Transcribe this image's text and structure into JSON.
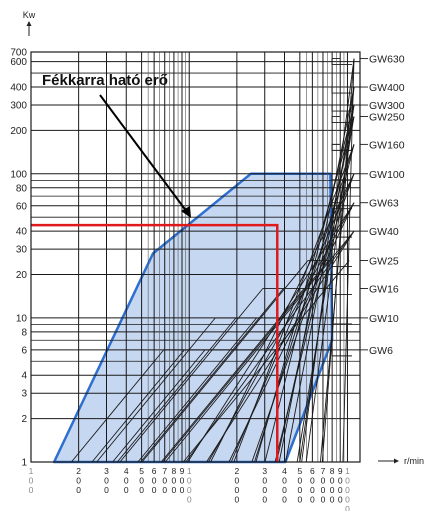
{
  "chart_data": {
    "type": "line",
    "title": "Fékkarra ható erő",
    "ylabel": "Kw",
    "xunit": "r/min",
    "y_scale": "log",
    "x_scale": "log",
    "ylim": [
      1,
      700
    ],
    "xlim": [
      100,
      12000
    ],
    "y_ticks": [
      1,
      2,
      3,
      4,
      6,
      8,
      10,
      20,
      30,
      40,
      60,
      80,
      100,
      200,
      300,
      400,
      600,
      700
    ],
    "y_tick_labels": [
      "1",
      "2",
      "3",
      "4",
      "6",
      "8",
      "10",
      "20",
      "30",
      "40",
      "60",
      "80",
      "100",
      "200",
      "300",
      "400",
      "600",
      "700"
    ],
    "x_tick_labels": [
      {
        "value": 100,
        "digits": [
          "1",
          "0",
          "0"
        ],
        "grey": true
      },
      {
        "value": 200,
        "digits": [
          "2",
          "0",
          "0"
        ]
      },
      {
        "value": 300,
        "digits": [
          "3",
          "0",
          "0"
        ]
      },
      {
        "value": 400,
        "digits": [
          "4",
          "0",
          "0"
        ]
      },
      {
        "value": 500,
        "digits": [
          "5",
          "0",
          "0"
        ]
      },
      {
        "value": 600,
        "digits": [
          "6",
          "0",
          "0"
        ]
      },
      {
        "value": 700,
        "digits": [
          "7",
          "0",
          "0"
        ]
      },
      {
        "value": 800,
        "digits": [
          "8",
          "0",
          "0"
        ]
      },
      {
        "value": 900,
        "digits": [
          "9",
          "0",
          "0"
        ]
      },
      {
        "value": 1000,
        "digits": [
          "1",
          "0",
          "0",
          "0"
        ],
        "grey": true
      },
      {
        "value": 2000,
        "digits": [
          "2",
          "0",
          "0",
          "0"
        ]
      },
      {
        "value": 3000,
        "digits": [
          "3",
          "0",
          "0",
          "0"
        ]
      },
      {
        "value": 4000,
        "digits": [
          "4",
          "0",
          "0",
          "0"
        ]
      },
      {
        "value": 5000,
        "digits": [
          "5",
          "0",
          "0",
          "0"
        ]
      },
      {
        "value": 6000,
        "digits": [
          "6",
          "0",
          "0",
          "0"
        ]
      },
      {
        "value": 7000,
        "digits": [
          "7",
          "0",
          "0",
          "0"
        ]
      },
      {
        "value": 8000,
        "digits": [
          "8",
          "0",
          "0",
          "0"
        ]
      },
      {
        "value": 9000,
        "digits": [
          "9",
          "0",
          "0",
          "0"
        ]
      },
      {
        "value": 10000,
        "digits": [
          "1",
          "0",
          "0",
          "0",
          "0"
        ],
        "grey": true
      }
    ],
    "models": [
      {
        "name": "GW630",
        "max_kw": 630
      },
      {
        "name": "GW400",
        "max_kw": 400
      },
      {
        "name": "GW300",
        "max_kw": 300
      },
      {
        "name": "GW250",
        "max_kw": 250
      },
      {
        "name": "GW160",
        "max_kw": 160
      },
      {
        "name": "GW100",
        "max_kw": 100
      },
      {
        "name": "GW63",
        "max_kw": 63
      },
      {
        "name": "GW40",
        "max_kw": 40
      },
      {
        "name": "GW25",
        "max_kw": 25
      },
      {
        "name": "GW16",
        "max_kw": 16
      },
      {
        "name": "GW10",
        "max_kw": 10
      },
      {
        "name": "GW6",
        "max_kw": 6
      }
    ],
    "operating_region": [
      [
        140,
        1
      ],
      [
        590,
        28
      ],
      [
        2450,
        100
      ],
      [
        7800,
        100
      ],
      [
        8000,
        7
      ],
      [
        4050,
        1
      ]
    ],
    "selection": {
      "kw": 44,
      "rpm": 3600
    },
    "colors": {
      "region_fill": "#c6d7f2",
      "region_edge": "#2e6fd0",
      "selection": "#e0191b",
      "grid": "#1a1a1a",
      "grid_light": "#555555"
    }
  }
}
